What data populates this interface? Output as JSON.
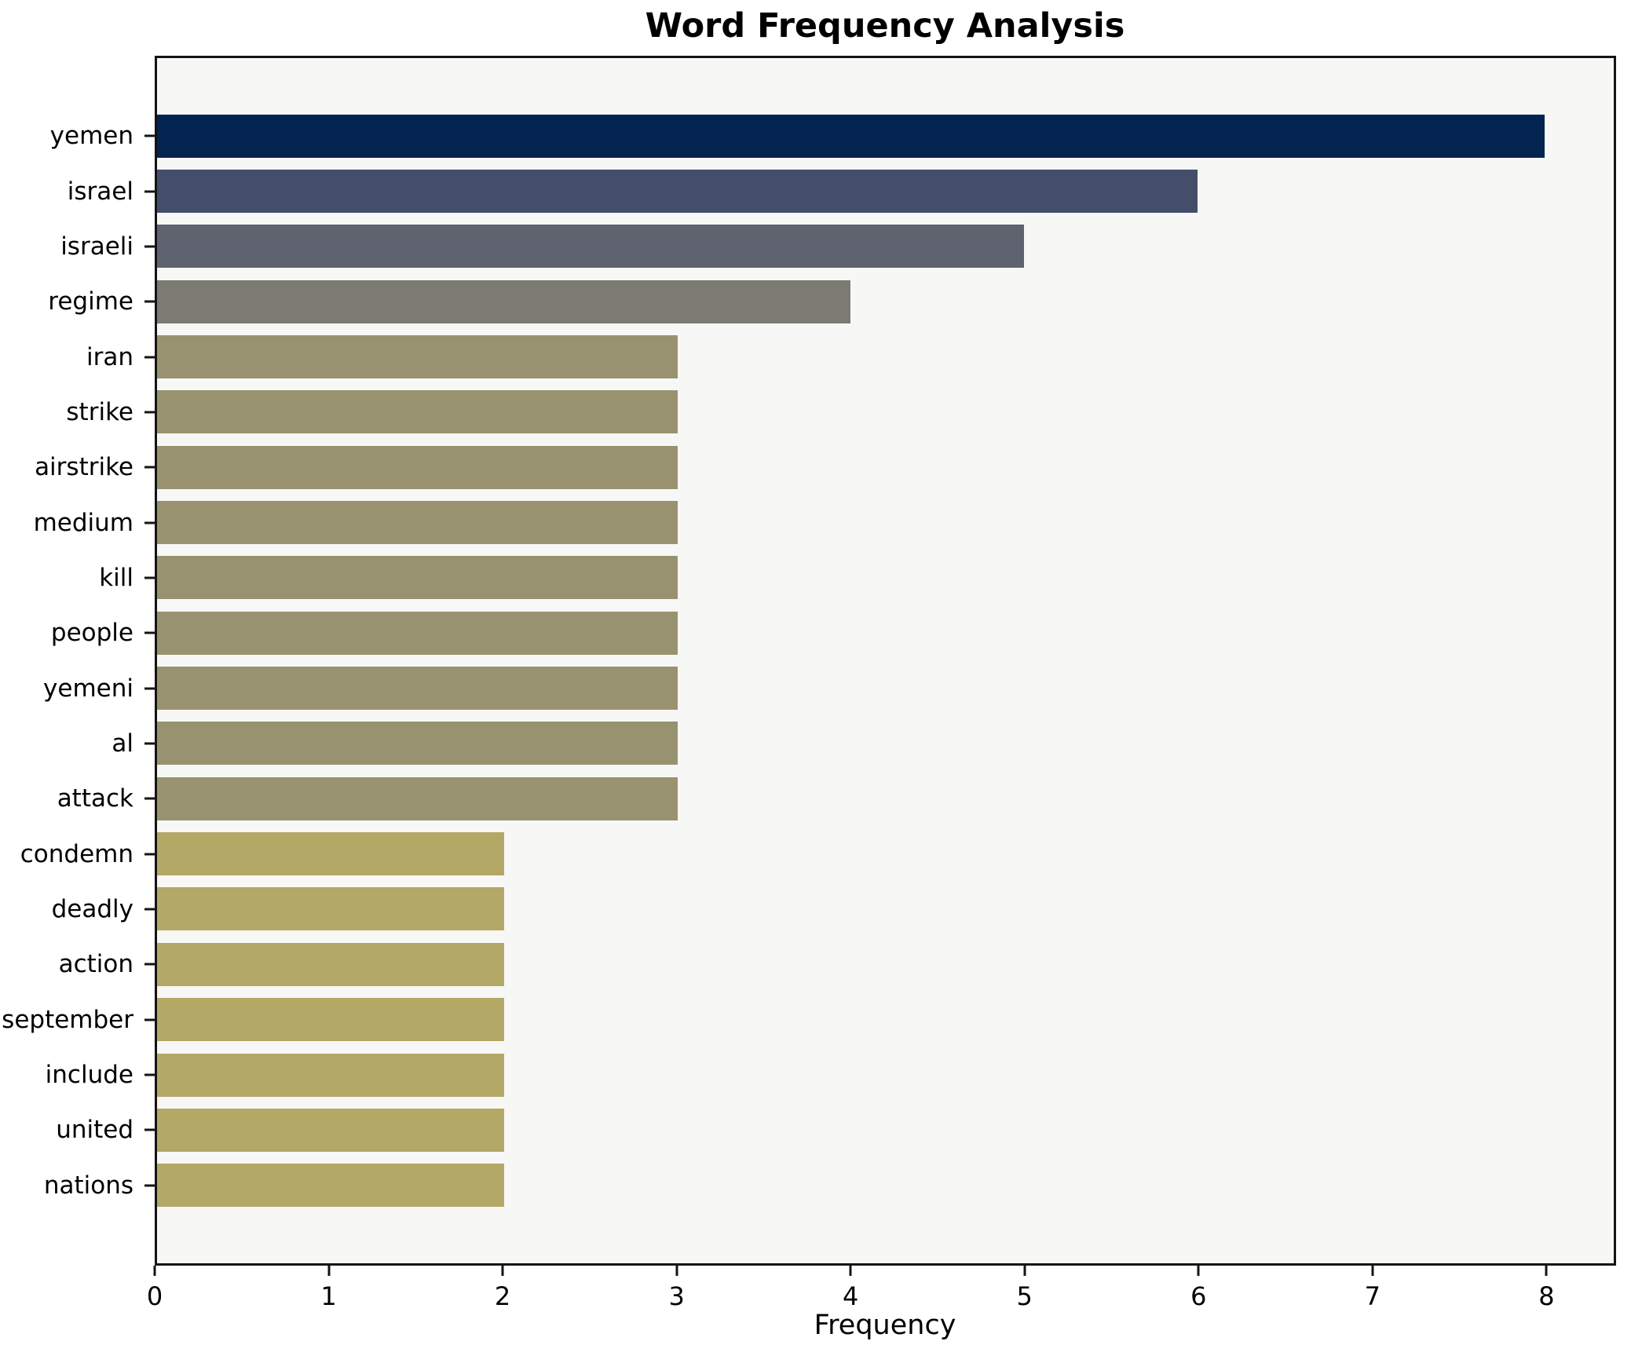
{
  "chart_data": {
    "type": "bar",
    "orientation": "horizontal",
    "title": "Word Frequency Analysis",
    "xlabel": "Frequency",
    "ylabel": "",
    "categories": [
      "yemen",
      "israel",
      "israeli",
      "regime",
      "iran",
      "strike",
      "airstrike",
      "medium",
      "kill",
      "people",
      "yemeni",
      "al",
      "attack",
      "condemn",
      "deadly",
      "action",
      "september",
      "include",
      "united",
      "nations"
    ],
    "values": [
      8,
      6,
      5,
      4,
      3,
      3,
      3,
      3,
      3,
      3,
      3,
      3,
      3,
      2,
      2,
      2,
      2,
      2,
      2,
      2
    ],
    "bar_colors": [
      "#032450",
      "#444e6b",
      "#5f6370",
      "#7b7a73",
      "#989270",
      "#989270",
      "#989270",
      "#989270",
      "#989270",
      "#989270",
      "#989270",
      "#989270",
      "#989270",
      "#b3a865",
      "#b3a865",
      "#b3a865",
      "#b3a865",
      "#b3a865",
      "#b3a865",
      "#b3a865"
    ],
    "xticks": [
      "0",
      "1",
      "2",
      "3",
      "4",
      "5",
      "6",
      "7",
      "8"
    ],
    "xlim": [
      0,
      8.4
    ],
    "grid": "off",
    "legend": "none",
    "plot_background": "#f7f7f6",
    "figure_background": "#ffffff",
    "spine_color": "#141414"
  }
}
